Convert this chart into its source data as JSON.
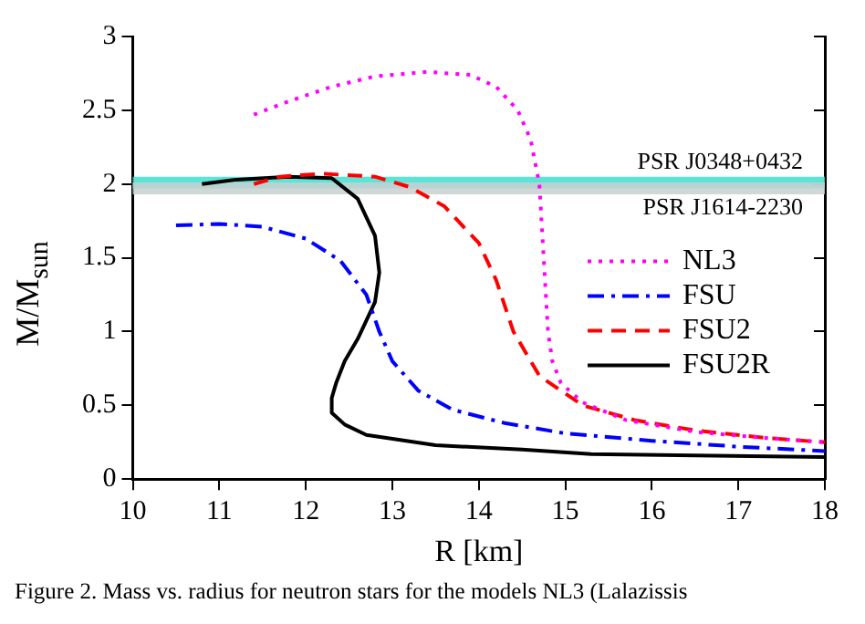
{
  "chart_data": {
    "type": "line",
    "xlabel": "R [km]",
    "ylabel": "M/M$_{sun}$",
    "xlim": [
      10,
      18
    ],
    "xticks": [
      10,
      11,
      12,
      13,
      14,
      15,
      16,
      17,
      18
    ],
    "ylim": [
      0,
      3
    ],
    "yticks": [
      0,
      0.5,
      1,
      1.5,
      2,
      2.5,
      3
    ],
    "grid": false,
    "legend": "right",
    "marker": "none",
    "bands": [
      {
        "axis": "y",
        "from": 1.97,
        "to": 2.05,
        "label": "PSR J0348+0432",
        "color": "#40e0d0"
      },
      {
        "axis": "y",
        "from": 1.93,
        "to": 2.01,
        "label": "PSR J1614-2230",
        "color": "#c8d0d0"
      }
    ],
    "series": [
      {
        "name": "NL3",
        "color": "#ff00ff",
        "line_style": "dotted",
        "x": [
          11.4,
          11.8,
          12.3,
          12.8,
          13.4,
          13.9,
          14.2,
          14.45,
          14.6,
          14.7,
          14.75,
          14.8,
          14.85,
          14.95,
          15.2,
          15.7,
          16.5,
          17.3,
          18
        ],
        "values": [
          2.47,
          2.56,
          2.66,
          2.73,
          2.76,
          2.74,
          2.66,
          2.5,
          2.3,
          2.0,
          1.5,
          1.0,
          0.8,
          0.65,
          0.52,
          0.4,
          0.32,
          0.28,
          0.25
        ]
      },
      {
        "name": "FSU",
        "color": "#0000ff",
        "line_style": "dashdot",
        "x": [
          10.5,
          11.0,
          11.5,
          12.0,
          12.4,
          12.7,
          12.85,
          13.0,
          13.3,
          13.7,
          14.3,
          15,
          16,
          17,
          18
        ],
        "values": [
          1.72,
          1.73,
          1.71,
          1.63,
          1.48,
          1.25,
          1.0,
          0.8,
          0.6,
          0.47,
          0.38,
          0.31,
          0.26,
          0.22,
          0.19
        ]
      },
      {
        "name": "FSU2",
        "color": "#ff0000",
        "line_style": "dashed",
        "x": [
          11.4,
          11.7,
          12.2,
          12.8,
          13.2,
          13.6,
          14.0,
          14.2,
          14.4,
          14.7,
          15.2,
          15.8,
          16.5,
          17.3,
          18
        ],
        "values": [
          2.0,
          2.05,
          2.07,
          2.05,
          1.98,
          1.85,
          1.6,
          1.35,
          1.0,
          0.7,
          0.5,
          0.4,
          0.33,
          0.28,
          0.25
        ]
      },
      {
        "name": "FSU2R",
        "color": "#000000",
        "line_style": "solid",
        "x": [
          10.8,
          11.2,
          11.8,
          12.3,
          12.6,
          12.8,
          12.85,
          12.8,
          12.6,
          12.45,
          12.35,
          12.3,
          12.3,
          12.45,
          12.7,
          13.5,
          14.5,
          15.3,
          16.5,
          18
        ],
        "values": [
          2.0,
          2.03,
          2.05,
          2.04,
          1.9,
          1.65,
          1.4,
          1.2,
          0.95,
          0.8,
          0.65,
          0.55,
          0.45,
          0.37,
          0.3,
          0.23,
          0.2,
          0.17,
          0.16,
          0.15
        ]
      }
    ],
    "annotations": [
      "Figure 2. Mass vs. radius for neutron stars for the models NL3 (Lalazissis"
    ]
  }
}
